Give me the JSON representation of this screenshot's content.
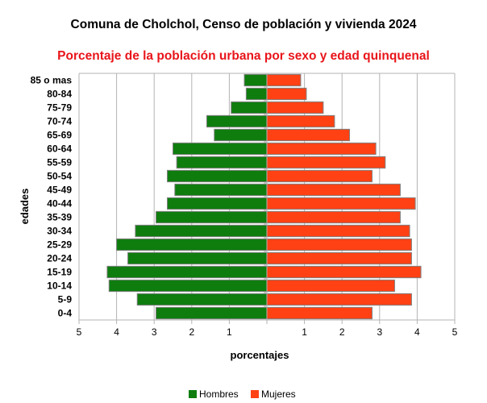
{
  "chart_data": {
    "type": "bar",
    "orientation": "horizontal",
    "layout": "population-pyramid",
    "title": "Comuna de Cholchol, Censo de población y vivienda 2024",
    "subtitle": "Porcentaje de la población urbana por sexo y edad quinquenal",
    "xlabel": "porcentajes",
    "ylabel": "edades",
    "xlim": [
      -5,
      5
    ],
    "x_ticks": [
      -5,
      -4,
      -3,
      -2,
      -1,
      0,
      1,
      2,
      3,
      4,
      5
    ],
    "x_tick_labels": [
      "5",
      "4",
      "3",
      "2",
      "1",
      "",
      "1",
      "2",
      "3",
      "4",
      "5"
    ],
    "grid": true,
    "legend_position": "bottom",
    "categories": [
      "0-4",
      "5-9",
      "10-14",
      "15-19",
      "20-24",
      "25-29",
      "30-34",
      "35-39",
      "40-44",
      "45-49",
      "50-54",
      "55-59",
      "60-64",
      "65-69",
      "70-74",
      "75-79",
      "80-84",
      "85 o mas"
    ],
    "series": [
      {
        "name": "Hombres",
        "side": "left",
        "color": "#0e7d0e",
        "values": [
          2.95,
          3.45,
          4.2,
          4.25,
          3.7,
          4.0,
          3.5,
          2.95,
          2.65,
          2.45,
          2.65,
          2.4,
          2.5,
          1.4,
          1.6,
          0.95,
          0.55,
          0.6
        ]
      },
      {
        "name": "Mujeres",
        "side": "right",
        "color": "#ff4114",
        "values": [
          2.8,
          3.85,
          3.4,
          4.1,
          3.85,
          3.85,
          3.8,
          3.55,
          3.95,
          3.55,
          2.8,
          3.15,
          2.9,
          2.2,
          1.8,
          1.5,
          1.05,
          0.9
        ]
      }
    ]
  },
  "colors": {
    "subtitle": "#e8141a",
    "bar_border": "#808080",
    "grid": "#b3b3b3"
  }
}
